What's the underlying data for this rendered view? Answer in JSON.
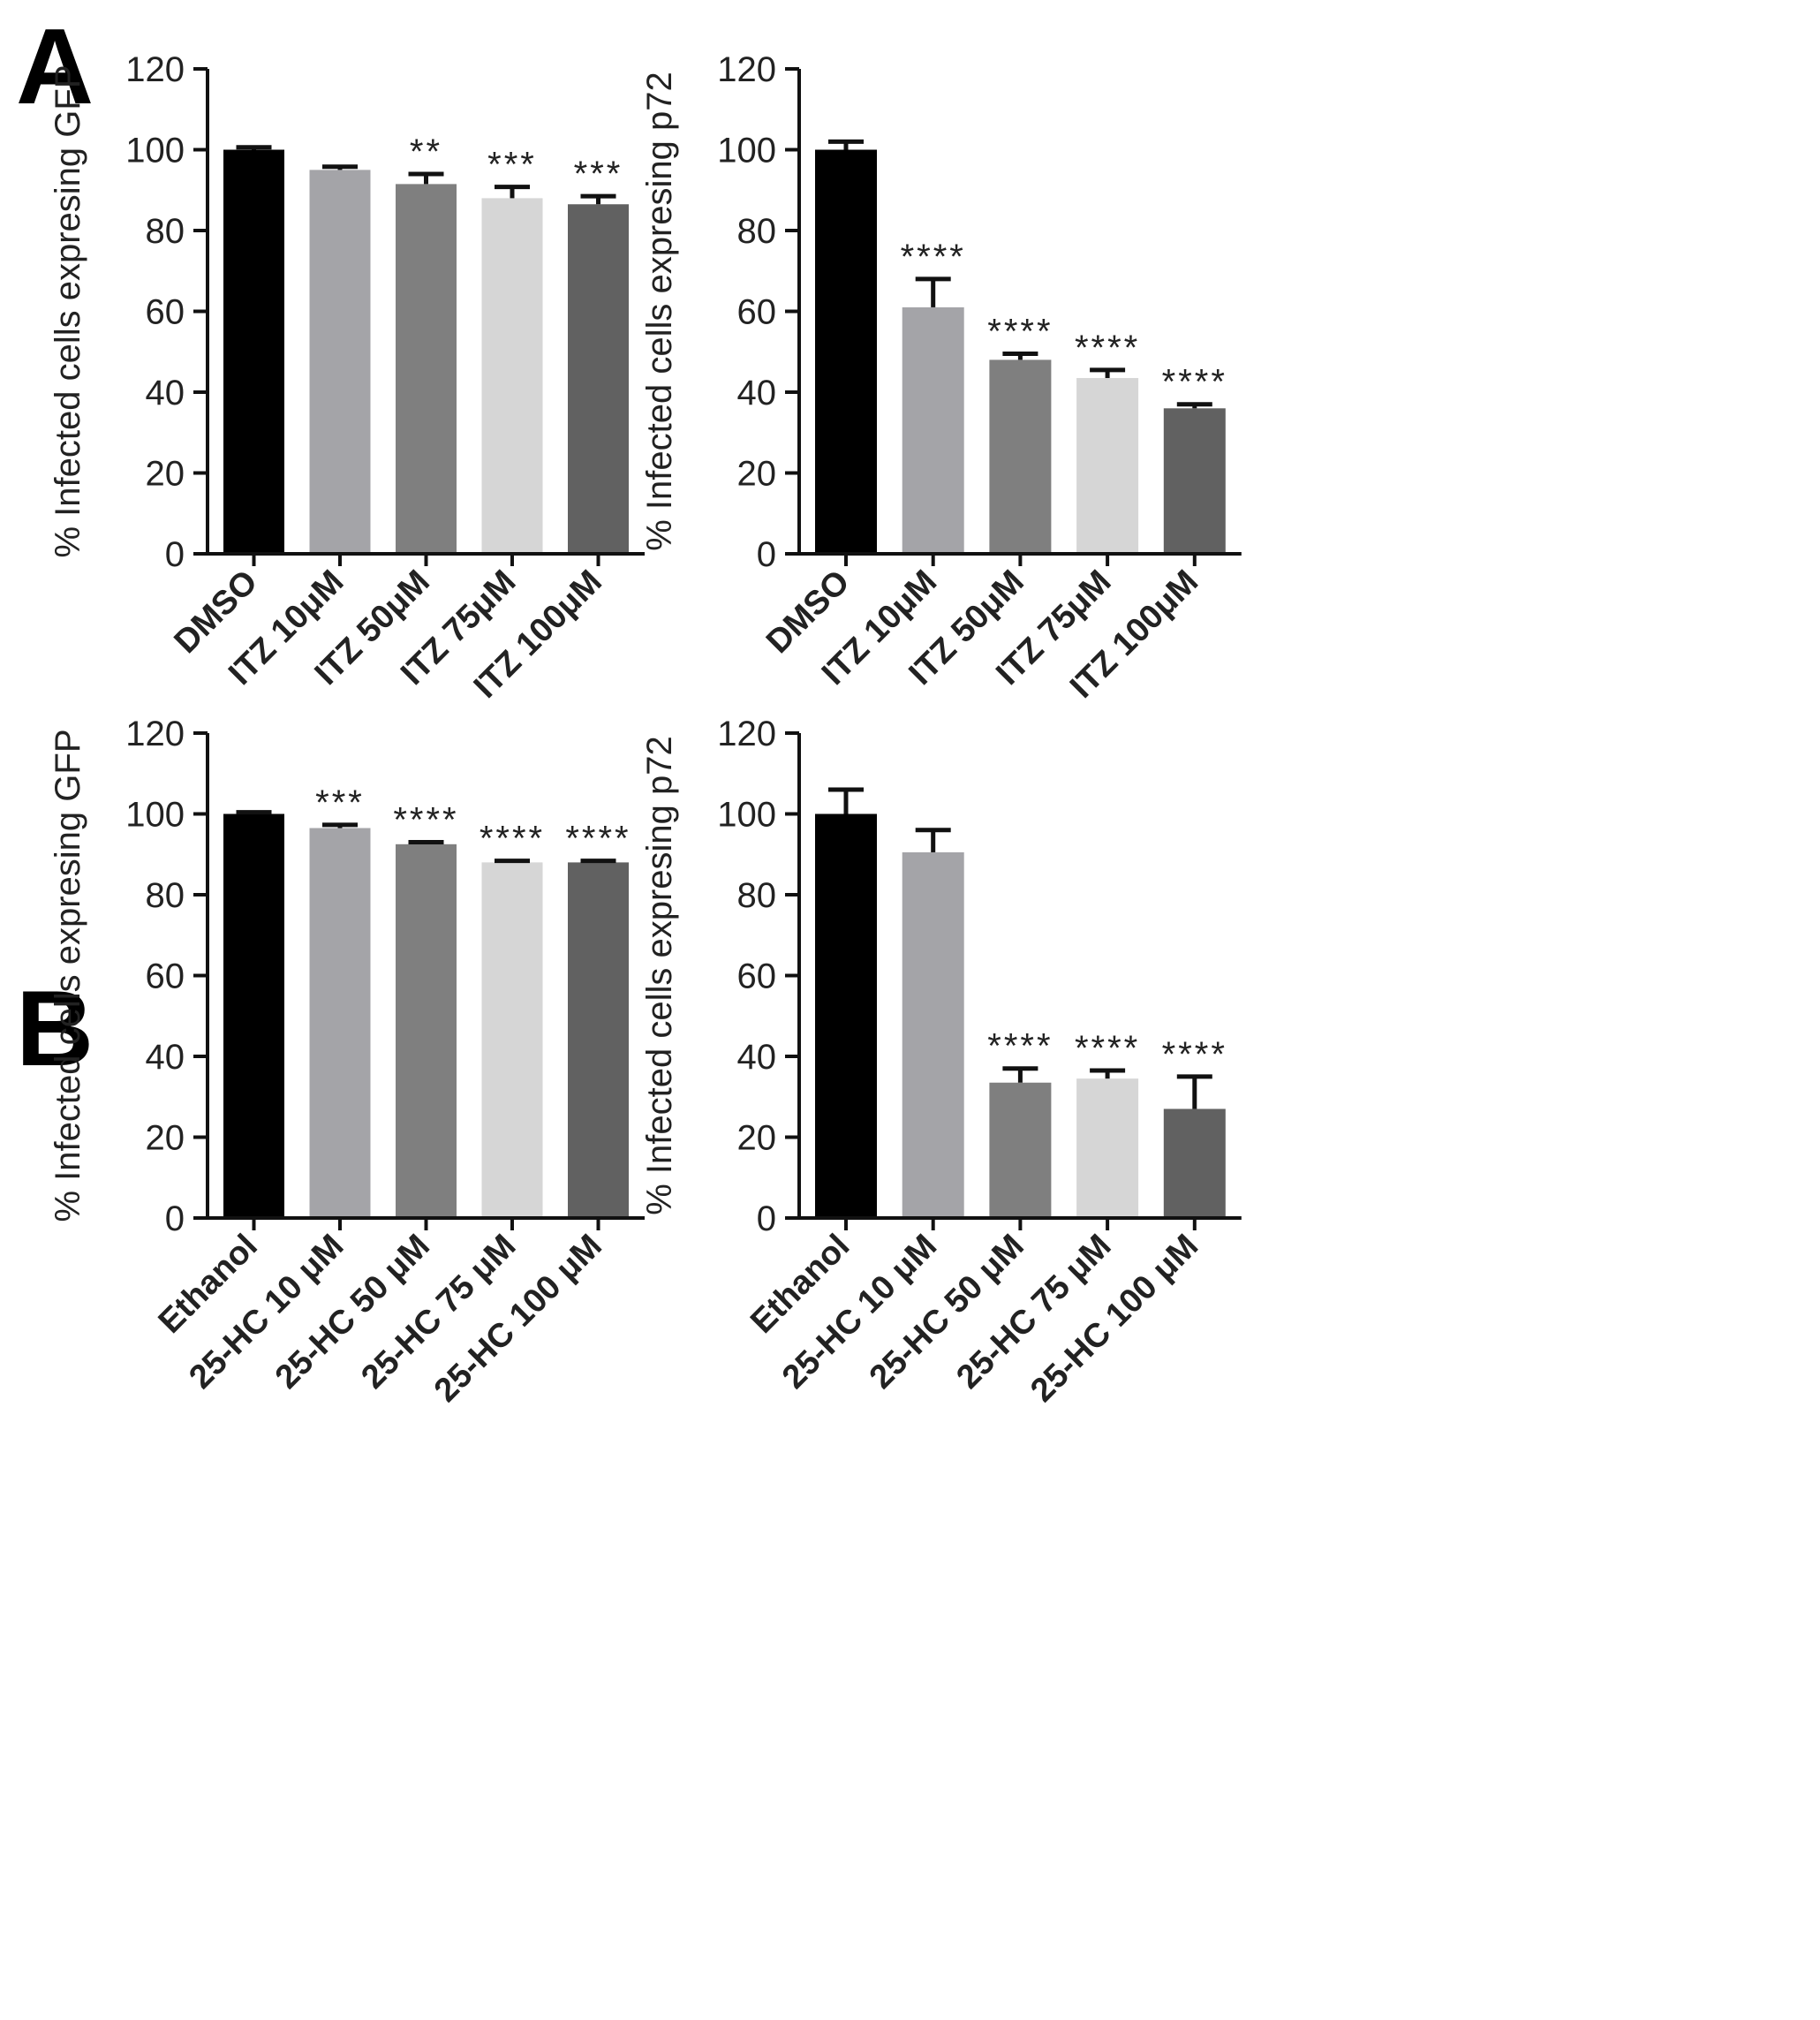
{
  "panels": {
    "A": "A",
    "B": "B"
  },
  "chart_data": [
    {
      "panel": "A",
      "type": "bar",
      "ylabel": "% Infected cells expresing GFP",
      "ylim": [
        0,
        120
      ],
      "yticks": [
        0,
        20,
        40,
        60,
        80,
        100,
        120
      ],
      "categories": [
        "DMSO",
        "ITZ 10μM",
        "ITZ 50μM",
        "ITZ 75μM",
        "ITZ 100μM"
      ],
      "values": [
        100,
        95,
        91.5,
        88,
        86.5
      ],
      "errors": [
        0.6,
        0.8,
        2.5,
        2.8,
        2.0
      ],
      "significance": [
        "",
        "",
        "**",
        "***",
        "***"
      ],
      "colors": [
        "#000000",
        "#a4a4a8",
        "#7f7f7f",
        "#d6d6d6",
        "#616161"
      ]
    },
    {
      "panel": "A",
      "type": "bar",
      "ylabel": "% Infected cells expresing p72",
      "ylim": [
        0,
        120
      ],
      "yticks": [
        0,
        20,
        40,
        60,
        80,
        100,
        120
      ],
      "categories": [
        "DMSO",
        "ITZ 10μM",
        "ITZ 50μM",
        "ITZ 75μM",
        "ITZ 100μM"
      ],
      "values": [
        100,
        61,
        48,
        43.5,
        36
      ],
      "errors": [
        2.0,
        7.0,
        1.5,
        2.0,
        1.0
      ],
      "significance": [
        "",
        "****",
        "****",
        "****",
        "****"
      ],
      "colors": [
        "#000000",
        "#a4a4a8",
        "#7f7f7f",
        "#d6d6d6",
        "#616161"
      ]
    },
    {
      "panel": "B",
      "type": "bar",
      "ylabel": "% Infected cells expresing GFP",
      "ylim": [
        0,
        120
      ],
      "yticks": [
        0,
        20,
        40,
        60,
        80,
        100,
        120
      ],
      "categories": [
        "Ethanol",
        "25-HC 10 μM",
        "25-HC 50 μM",
        "25-HC 75 μM",
        "25-HC 100 μM"
      ],
      "values": [
        100,
        96.5,
        92.5,
        88,
        88
      ],
      "errors": [
        0.4,
        0.8,
        0.5,
        0.4,
        0.4
      ],
      "significance": [
        "",
        "***",
        "****",
        "****",
        "****"
      ],
      "colors": [
        "#000000",
        "#a4a4a8",
        "#7f7f7f",
        "#d6d6d6",
        "#616161"
      ]
    },
    {
      "panel": "B",
      "type": "bar",
      "ylabel": "% Infected cells expresing p72",
      "ylim": [
        0,
        120
      ],
      "yticks": [
        0,
        20,
        40,
        60,
        80,
        100,
        120
      ],
      "categories": [
        "Ethanol",
        "25-HC 10 μM",
        "25-HC 50 μM",
        "25-HC 75 μM",
        "25-HC 100 μM"
      ],
      "values": [
        100,
        90.5,
        33.5,
        34.5,
        27
      ],
      "errors": [
        6.0,
        5.5,
        3.5,
        2.0,
        8.0
      ],
      "significance": [
        "",
        "",
        "****",
        "****",
        "****"
      ],
      "colors": [
        "#000000",
        "#a4a4a8",
        "#7f7f7f",
        "#d6d6d6",
        "#616161"
      ]
    }
  ]
}
